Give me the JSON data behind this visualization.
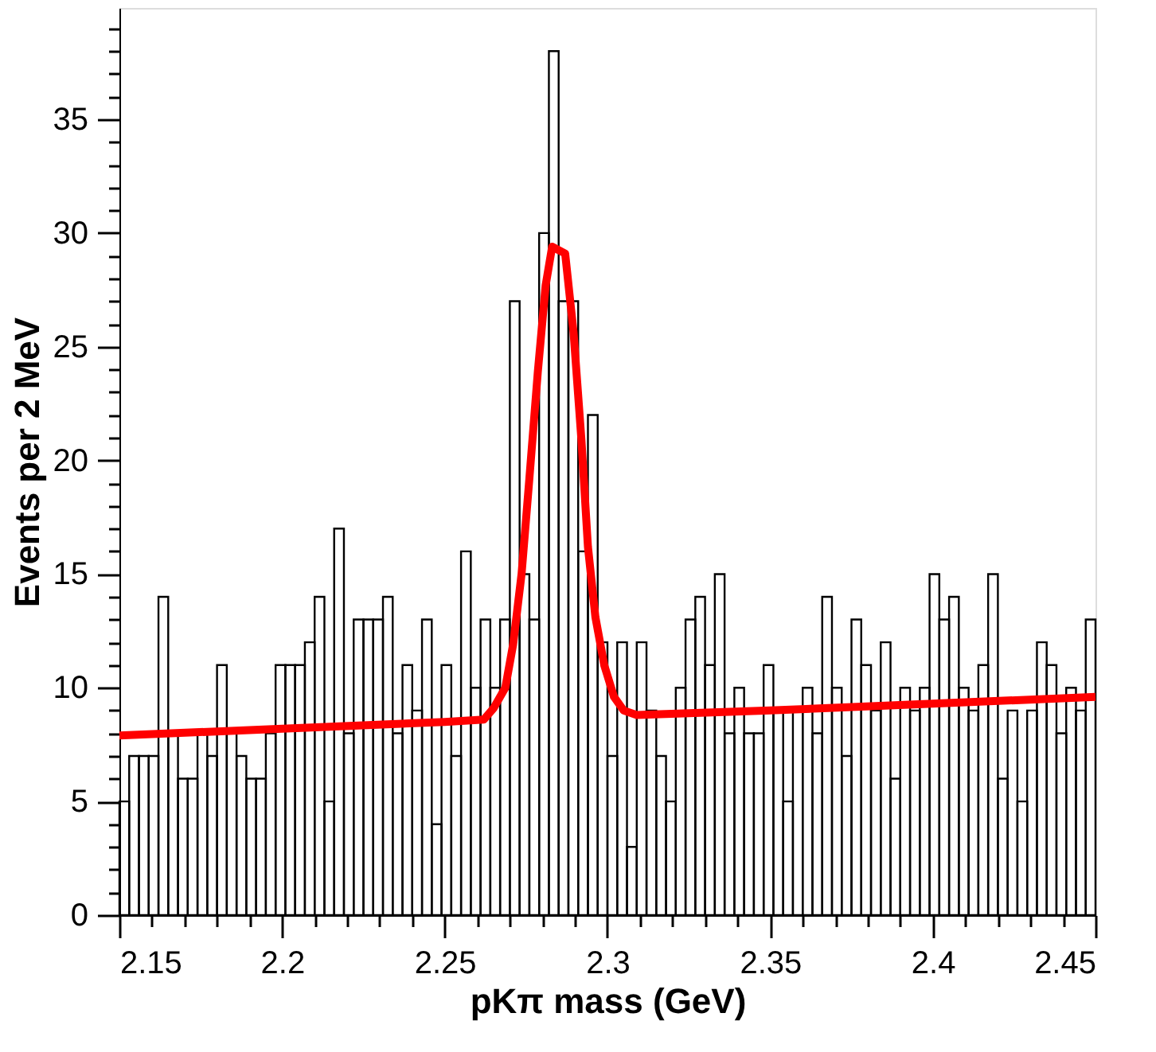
{
  "chart_data": {
    "type": "histogram",
    "xlabel": "pKπ mass (GeV)",
    "ylabel": "Events per 2 MeV",
    "bins": [
      2.15,
      2.153,
      2.156,
      2.159,
      2.162,
      2.165,
      2.168,
      2.171,
      2.174,
      2.177,
      2.18,
      2.183,
      2.186,
      2.189,
      2.192,
      2.195,
      2.198,
      2.201,
      2.204,
      2.207,
      2.21,
      2.213,
      2.216,
      2.219,
      2.222,
      2.225,
      2.228,
      2.231,
      2.234,
      2.237,
      2.24,
      2.243,
      2.246,
      2.249,
      2.252,
      2.255,
      2.258,
      2.261,
      2.264,
      2.267,
      2.27,
      2.273,
      2.276,
      2.279,
      2.282,
      2.285,
      2.288,
      2.291,
      2.294,
      2.297,
      2.3,
      2.303,
      2.306,
      2.309,
      2.312,
      2.315,
      2.318,
      2.321,
      2.324,
      2.327,
      2.33,
      2.333,
      2.336,
      2.339,
      2.342,
      2.345,
      2.348,
      2.351,
      2.354,
      2.357,
      2.36,
      2.363,
      2.366,
      2.369,
      2.372,
      2.375,
      2.378,
      2.381,
      2.384,
      2.387,
      2.39,
      2.393,
      2.396,
      2.399,
      2.402,
      2.405,
      2.408,
      2.411,
      2.414,
      2.417,
      2.42,
      2.423,
      2.426,
      2.429,
      2.432,
      2.435,
      2.438,
      2.441,
      2.444,
      2.447,
      2.45
    ],
    "values": [
      5,
      7,
      7,
      7,
      14,
      8,
      6,
      6,
      8,
      7,
      11,
      8,
      7,
      6,
      6,
      8,
      11,
      11,
      11,
      12,
      14,
      5,
      17,
      8,
      13,
      13,
      13,
      14,
      8,
      11,
      9,
      13,
      4,
      11,
      7,
      16,
      10,
      13,
      10,
      13,
      27,
      15,
      13,
      30,
      38,
      27,
      27,
      16,
      22,
      12,
      7,
      12,
      3,
      12,
      9,
      7,
      5,
      10,
      13,
      14,
      11,
      15,
      8,
      10,
      8,
      8,
      11,
      9,
      5,
      9,
      10,
      8,
      14,
      10,
      7,
      13,
      11,
      9,
      12,
      6,
      10,
      9,
      10,
      15,
      13,
      14,
      10,
      9,
      11,
      15,
      6,
      9,
      5,
      9,
      12,
      11,
      8,
      10,
      9,
      13
    ],
    "color": "#000000",
    "series": [
      {
        "type": "line",
        "color": "#ff0000",
        "x": [
          2.15,
          2.2,
          2.25,
          2.262,
          2.265,
          2.2686,
          2.271,
          2.2736,
          2.276,
          2.2786,
          2.281,
          2.283,
          2.287,
          2.2896,
          2.292,
          2.294,
          2.2963,
          2.299,
          2.302,
          2.305,
          2.309,
          2.35,
          2.4,
          2.45
        ],
        "values": [
          7.9,
          8.2,
          8.5,
          8.6,
          9.1,
          10.0,
          11.9,
          15.0,
          19.2,
          23.9,
          27.7,
          29.4,
          29.1,
          25.6,
          20.9,
          16.2,
          13.1,
          11.0,
          9.6,
          9.0,
          8.8,
          9.0,
          9.3,
          9.6
        ]
      }
    ],
    "xlim": [
      2.15,
      2.45
    ],
    "xticks": [
      2.15,
      {
        "value": 2.16,
        "label": null
      },
      {
        "value": 2.17,
        "label": null
      },
      {
        "value": 2.18,
        "label": null
      },
      {
        "value": 2.19,
        "label": null
      },
      2.2,
      {
        "value": 2.21,
        "label": null
      },
      {
        "value": 2.22,
        "label": null
      },
      {
        "value": 2.23,
        "label": null
      },
      {
        "value": 2.24,
        "label": null
      },
      2.25,
      {
        "value": 2.26,
        "label": null
      },
      {
        "value": 2.27,
        "label": null
      },
      {
        "value": 2.28,
        "label": null
      },
      {
        "value": 2.29,
        "label": null
      },
      2.3,
      {
        "value": 2.31,
        "label": null
      },
      {
        "value": 2.32,
        "label": null
      },
      {
        "value": 2.33,
        "label": null
      },
      {
        "value": 2.34,
        "label": null
      },
      2.35,
      {
        "value": 2.36,
        "label": null
      },
      {
        "value": 2.37,
        "label": null
      },
      {
        "value": 2.38,
        "label": null
      },
      {
        "value": 2.39,
        "label": null
      },
      2.4,
      {
        "value": 2.41,
        "label": null
      },
      {
        "value": 2.42,
        "label": null
      },
      {
        "value": 2.43,
        "label": null
      },
      {
        "value": 2.44,
        "label": null
      },
      2.45
    ],
    "ylim": [
      0,
      39.9
    ],
    "yticks": [
      0,
      {
        "value": 1,
        "label": null
      },
      {
        "value": 2,
        "label": null
      },
      {
        "value": 3,
        "label": null
      },
      {
        "value": 4,
        "label": null
      },
      5,
      {
        "value": 6,
        "label": null
      },
      {
        "value": 7,
        "label": null
      },
      {
        "value": 8,
        "label": null
      },
      {
        "value": 9,
        "label": null
      },
      10,
      {
        "value": 11,
        "label": null
      },
      {
        "value": 12,
        "label": null
      },
      {
        "value": 13,
        "label": null
      },
      {
        "value": 14,
        "label": null
      },
      15,
      {
        "value": 16,
        "label": null
      },
      {
        "value": 17,
        "label": null
      },
      {
        "value": 18,
        "label": null
      },
      {
        "value": 19,
        "label": null
      },
      20,
      {
        "value": 21,
        "label": null
      },
      {
        "value": 22,
        "label": null
      },
      {
        "value": 23,
        "label": null
      },
      {
        "value": 24,
        "label": null
      },
      25,
      {
        "value": 26,
        "label": null
      },
      {
        "value": 27,
        "label": null
      },
      {
        "value": 28,
        "label": null
      },
      {
        "value": 29,
        "label": null
      },
      30,
      {
        "value": 31,
        "label": null
      },
      {
        "value": 32,
        "label": null
      },
      {
        "value": 33,
        "label": null
      },
      {
        "value": 34,
        "label": null
      },
      35,
      {
        "value": 36,
        "label": null
      },
      {
        "value": 37,
        "label": null
      },
      {
        "value": 38,
        "label": null
      },
      {
        "value": 39,
        "label": null
      }
    ],
    "grid": false
  }
}
